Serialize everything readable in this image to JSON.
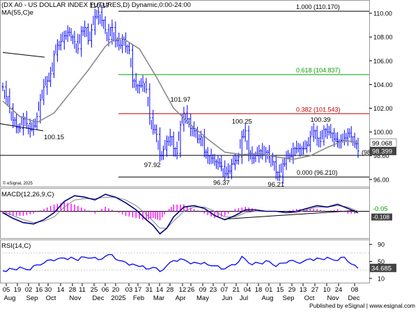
{
  "header": {
    "title": "(DX A0 - US DOLLAR INDEX FUTURES,D) Dynamic,0:00-24:00",
    "ma_label": "MA(55,C)e",
    "watermark": "© eSignal, 2025"
  },
  "footer": {
    "credit": "Published by eSignal | www.esignal.com"
  },
  "x_axis": {
    "days": [
      "05",
      "19",
      "02",
      "16",
      "30",
      "14",
      "28",
      "11",
      "25",
      "06",
      "20",
      "03",
      "17",
      "31",
      "14",
      "28",
      "12",
      "26",
      "09",
      "23",
      "07",
      "21",
      "04",
      "18",
      "01",
      "15",
      "29",
      "13",
      "27",
      "10",
      "24",
      "08"
    ],
    "months": [
      "Aug",
      "Sep",
      "Oct",
      "Nov",
      "Dec",
      "2025",
      "Feb",
      "Mar",
      "Apr",
      "May",
      "Jun",
      "Jul",
      "Aug",
      "Sep",
      "Oct",
      "Nov",
      "Dec"
    ]
  },
  "colors": {
    "price_bars": "#0000ff",
    "ma": "#8a8a8a",
    "fib_top": "#000000",
    "fib_618": "#00a000",
    "fib_382": "#c00000",
    "macd_line": "#000080",
    "macd_signal": "#808080",
    "macd_hist": "#ff00ff",
    "rsi_line": "#0000ff",
    "tag_bg": "#444444"
  },
  "chart_data": [
    {
      "type": "line",
      "name": "price",
      "y_ticks": [
        "110.00",
        "108.00",
        "106.00",
        "104.00",
        "102.00",
        "100.00",
        "98.00",
        "96.00"
      ],
      "ylim": [
        95.4,
        111.0
      ],
      "x": [
        0,
        2,
        4,
        6,
        8,
        10,
        12,
        14,
        16,
        18,
        20,
        22,
        24,
        26,
        28,
        30,
        32,
        34,
        36,
        38,
        40,
        42,
        44,
        46,
        48,
        50,
        52,
        54,
        56,
        58,
        60,
        62,
        64
      ],
      "close": [
        103.8,
        103.0,
        102.0,
        101.0,
        100.4,
        100.3,
        101.1,
        100.7,
        100.2,
        100.5,
        101.3,
        102.7,
        103.8,
        104.3,
        104.9,
        106.5,
        107.3,
        107.6,
        108.1,
        108.4,
        108.0,
        107.6,
        107.0,
        108.5,
        108.8,
        107.7,
        108.6,
        109.7,
        110.1,
        109.4,
        108.6,
        107.8,
        108.8
      ],
      "x2": [
        64,
        66,
        68,
        70,
        72,
        74,
        76,
        78,
        80,
        82,
        84,
        86,
        88,
        90,
        92,
        94,
        96,
        98,
        100,
        102,
        104,
        106,
        108,
        110,
        112,
        114,
        116,
        118,
        120,
        122,
        124,
        126,
        128
      ],
      "close2": [
        108.8,
        107.7,
        107.3,
        107.8,
        107.2,
        106.9,
        104.3,
        103.9,
        103.9,
        104.2,
        103.6,
        101.2,
        100.2,
        99.8,
        98.0,
        98.5,
        99.2,
        99.6,
        98.6,
        98.2,
        100.6,
        101.6,
        101.1,
        100.3,
        100.1,
        99.4,
        99.6,
        98.3,
        98.0,
        97.8,
        97.5,
        97.4,
        97.1
      ],
      "x3": [
        128,
        130,
        132,
        134,
        136,
        138,
        140,
        142,
        144,
        146,
        148,
        150,
        152,
        154,
        156,
        158,
        160,
        162,
        164,
        166,
        168,
        170,
        172,
        174,
        176,
        178,
        180,
        182,
        184,
        186,
        188,
        190,
        192,
        194,
        196
      ],
      "close3": [
        97.1,
        96.5,
        96.7,
        97.3,
        97.6,
        97.9,
        99.6,
        100.1,
        98.2,
        97.8,
        98.0,
        98.4,
        98.1,
        98.3,
        97.9,
        97.5,
        96.6,
        96.3,
        97.3,
        97.8,
        97.9,
        98.6,
        98.6,
        98.6,
        98.6,
        98.9,
        99.6,
        100.1,
        99.5,
        99.2,
        100.2,
        100.0,
        99.9,
        99.4,
        99.2
      ],
      "x4": [
        196,
        198,
        200,
        202,
        204,
        206,
        208
      ],
      "close4": [
        99.2,
        99.3,
        99.5,
        99.9,
        99.6,
        99.0,
        98.4
      ],
      "ma_x": [
        0,
        10,
        20,
        30,
        40,
        50,
        60,
        64,
        70,
        80,
        90,
        100,
        110,
        120,
        130,
        140,
        150,
        160,
        170,
        180,
        190,
        200,
        208
      ],
      "ma": [
        102.6,
        101.3,
        100.8,
        101.6,
        103.4,
        105.2,
        107.2,
        107.7,
        107.9,
        107.0,
        104.6,
        102.0,
        100.6,
        99.4,
        98.3,
        98.1,
        98.2,
        97.9,
        97.7,
        98.0,
        98.7,
        99.3,
        99.1
      ],
      "fib_levels": [
        {
          "label": "1.000 (110.170)",
          "value": 110.17
        },
        {
          "label": "0.618 (104.837)",
          "value": 104.837
        },
        {
          "label": "0.382 (101.543)",
          "value": 101.543
        },
        {
          "label": "0.000 (96.210)",
          "value": 96.21
        }
      ],
      "support_line": 98.03,
      "support_label": "(98.030)",
      "annotations": [
        {
          "text": "110.17",
          "x": 64,
          "y": 110.17
        },
        {
          "text": "100.15",
          "x": 30,
          "y": 100.15
        },
        {
          "text": "101.97",
          "x": 104,
          "y": 101.97
        },
        {
          "text": "97.92",
          "x": 90,
          "y": 97.92
        },
        {
          "text": "100.25",
          "x": 140,
          "y": 100.25
        },
        {
          "text": "96.37",
          "x": 128,
          "y": 96.37
        },
        {
          "text": "100.39",
          "x": 186,
          "y": 100.39
        },
        {
          "text": "96.21",
          "x": 160,
          "y": 96.21
        }
      ],
      "price_tags": [
        {
          "text": "99.068",
          "value": 99.068
        },
        {
          "text": "98.399",
          "value": 98.399
        }
      ]
    },
    {
      "type": "line",
      "name": "MACD(12,26,9,C)",
      "ylim": [
        -1.9,
        1.6
      ],
      "zero_tag": "-0.05",
      "line_tag": "-0.108",
      "x": [
        0,
        6,
        12,
        18,
        24,
        30,
        36,
        42,
        48,
        54,
        60,
        66,
        72,
        78,
        84,
        88,
        92,
        96,
        100,
        106,
        112,
        118,
        124,
        130,
        136,
        142,
        148,
        154,
        160,
        166,
        172,
        178,
        184,
        190,
        196,
        202,
        208
      ],
      "macd": [
        -0.1,
        -0.5,
        -0.8,
        -0.9,
        -0.6,
        -0.1,
        0.7,
        1.1,
        1.0,
        0.8,
        1.2,
        1.0,
        0.6,
        0.1,
        -0.6,
        -1.0,
        -1.6,
        -1.2,
        -0.4,
        0.3,
        0.4,
        0.2,
        -0.3,
        -0.6,
        -0.3,
        0.1,
        0.1,
        0.0,
        0.0,
        -0.1,
        0.0,
        0.2,
        0.4,
        0.3,
        0.5,
        0.2,
        -0.11
      ],
      "signal": [
        0.0,
        -0.3,
        -0.6,
        -0.8,
        -0.7,
        -0.4,
        0.3,
        0.8,
        0.9,
        0.9,
        1.0,
        1.0,
        0.8,
        0.4,
        -0.2,
        -0.7,
        -1.2,
        -1.2,
        -0.7,
        0.0,
        0.3,
        0.3,
        0.0,
        -0.4,
        -0.4,
        -0.1,
        0.0,
        0.0,
        0.0,
        -0.1,
        -0.1,
        0.1,
        0.3,
        0.3,
        0.4,
        0.3,
        0.0
      ],
      "trendline": {
        "from": [
          130,
          -0.55
        ],
        "to": [
          206,
          0.05
        ]
      }
    },
    {
      "type": "line",
      "name": "RSI(14,C)",
      "ylim": [
        0,
        100
      ],
      "ticks": [
        "90",
        "50",
        "10"
      ],
      "tag": "34.685",
      "x": [
        0,
        4,
        8,
        12,
        16,
        20,
        24,
        28,
        32,
        36,
        40,
        44,
        48,
        52,
        56,
        60,
        64,
        68,
        72,
        76,
        80,
        84,
        88,
        92,
        96,
        100,
        104,
        108,
        112,
        116,
        120,
        124,
        128,
        132,
        136,
        140,
        144,
        148,
        152,
        156,
        160,
        164,
        168,
        172,
        176,
        180,
        184,
        188,
        192,
        196,
        200,
        204,
        208
      ],
      "values": [
        28,
        34,
        30,
        34,
        30,
        42,
        46,
        54,
        56,
        58,
        60,
        52,
        60,
        58,
        54,
        62,
        66,
        52,
        48,
        44,
        38,
        32,
        36,
        26,
        40,
        52,
        56,
        50,
        48,
        44,
        42,
        40,
        32,
        38,
        42,
        62,
        46,
        48,
        44,
        50,
        38,
        46,
        52,
        48,
        50,
        56,
        58,
        54,
        56,
        52,
        60,
        44,
        34
      ]
    }
  ]
}
